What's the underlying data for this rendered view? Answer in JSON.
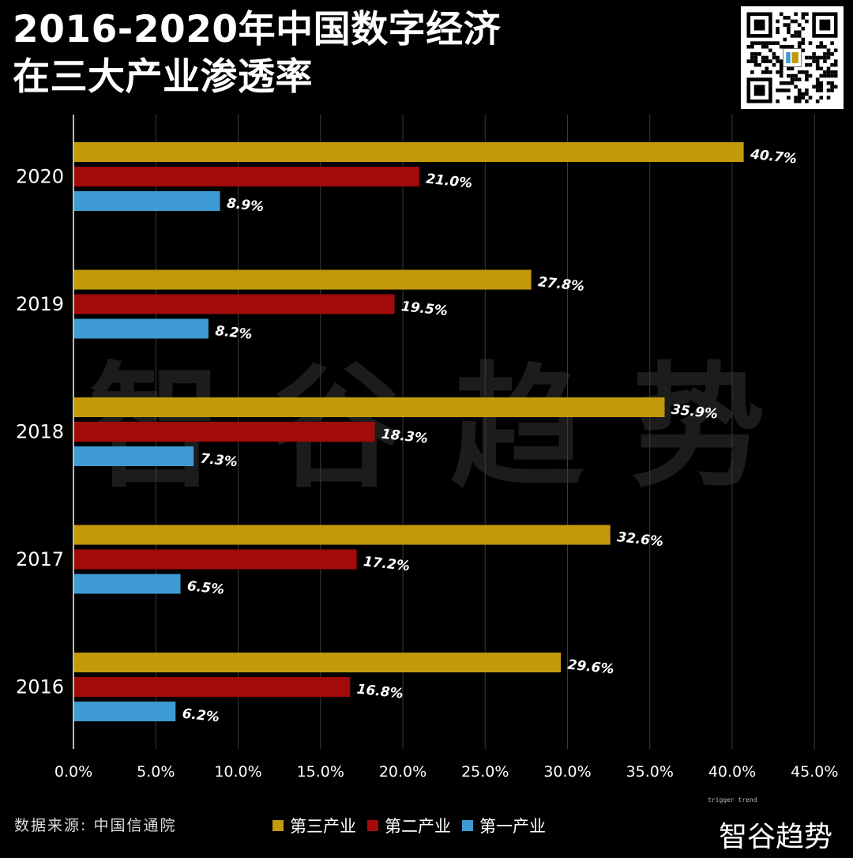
{
  "title": {
    "line1": "2016-2020年中国数字经济",
    "line2": "在三大产业渗透率"
  },
  "watermark": "智 谷 趋 势",
  "source": "数据来源: 中国信通院",
  "brand": {
    "name": "智谷趋势",
    "tagline": "trigger trend",
    "qr_icon": "qr-code-icon"
  },
  "colors": {
    "tertiary": "#C39A0C",
    "secondary": "#A30A0A",
    "primary": "#3E9AD2",
    "grid": "#3a3a3a",
    "axis": "#bbbbbb"
  },
  "chart_data": {
    "type": "bar",
    "orientation": "horizontal",
    "categories": [
      "2020",
      "2019",
      "2018",
      "2017",
      "2016"
    ],
    "series": [
      {
        "name": "第三产业",
        "values": [
          40.7,
          27.8,
          35.9,
          32.6,
          29.6
        ],
        "labels": [
          "40.7%",
          "27.8%",
          "35.9%",
          "32.6%",
          "29.6%"
        ]
      },
      {
        "name": "第二产业",
        "values": [
          21.0,
          19.5,
          18.3,
          17.2,
          16.8
        ],
        "labels": [
          "21.0%",
          "19.5%",
          "18.3%",
          "17.2%",
          "16.8%"
        ]
      },
      {
        "name": "第一产业",
        "values": [
          8.9,
          8.2,
          7.3,
          6.5,
          6.2
        ],
        "labels": [
          "8.9%",
          "8.2%",
          "7.3%",
          "6.5%",
          "6.2%"
        ]
      }
    ],
    "xlim": [
      0,
      45
    ],
    "xticks": [
      "0.0%",
      "5.0%",
      "10.0%",
      "15.0%",
      "20.0%",
      "25.0%",
      "30.0%",
      "35.0%",
      "40.0%",
      "45.0%"
    ],
    "grid": true,
    "legend_position": "bottom"
  }
}
